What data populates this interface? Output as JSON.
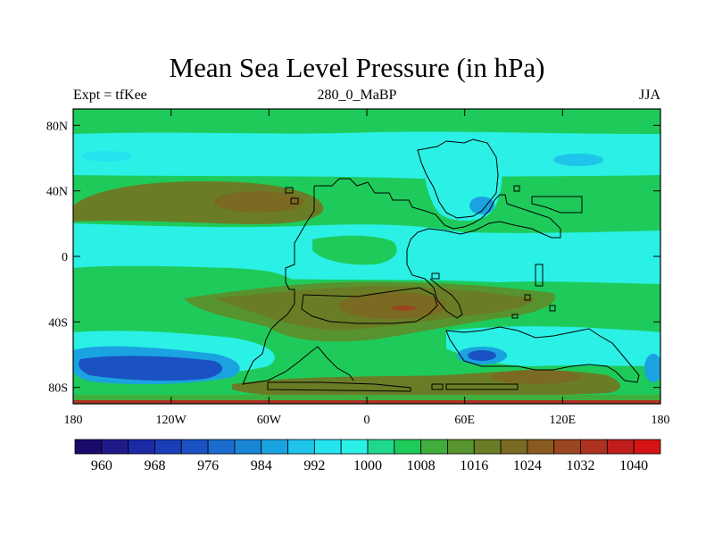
{
  "title": "Mean Sea Level Pressure (in hPa)",
  "header": {
    "left": "Expt = tfKee",
    "center": "280_0_MaBP",
    "right": "JJA"
  },
  "map": {
    "lon_range": [
      -180,
      180
    ],
    "lat_range": [
      -90,
      90
    ],
    "lat_ticks": [
      {
        "value": 80,
        "label": "80N"
      },
      {
        "value": 40,
        "label": "40N"
      },
      {
        "value": 0,
        "label": "0"
      },
      {
        "value": -40,
        "label": "40S"
      },
      {
        "value": -80,
        "label": "80S"
      }
    ],
    "lon_ticks": [
      {
        "value": -180,
        "label": "180"
      },
      {
        "value": -120,
        "label": "120W"
      },
      {
        "value": -60,
        "label": "60W"
      },
      {
        "value": 0,
        "label": "0"
      },
      {
        "value": 60,
        "label": "60E"
      },
      {
        "value": 120,
        "label": "120E"
      },
      {
        "value": 180,
        "label": "180"
      }
    ]
  },
  "colorbar": {
    "levels": [
      956,
      960,
      964,
      968,
      972,
      976,
      980,
      984,
      988,
      992,
      996,
      1000,
      1004,
      1008,
      1012,
      1016,
      1020,
      1024,
      1028,
      1032,
      1036,
      1040,
      1044
    ],
    "colors": [
      "#1a0a6b",
      "#1f1a8a",
      "#1c2aa6",
      "#1a3db8",
      "#1a52c4",
      "#1b6ccf",
      "#1a86d6",
      "#1aa3e0",
      "#1fc4ea",
      "#26e3f0",
      "#2af0e6",
      "#20d88c",
      "#1ecb5a",
      "#3fae3c",
      "#57932e",
      "#6a7d26",
      "#7a6a22",
      "#8a5a20",
      "#9a4620",
      "#ad3220",
      "#c01e1e",
      "#d41414"
    ],
    "labels": [
      "960",
      "968",
      "976",
      "984",
      "992",
      "1000",
      "1008",
      "1016",
      "1024",
      "1032",
      "1040"
    ]
  }
}
